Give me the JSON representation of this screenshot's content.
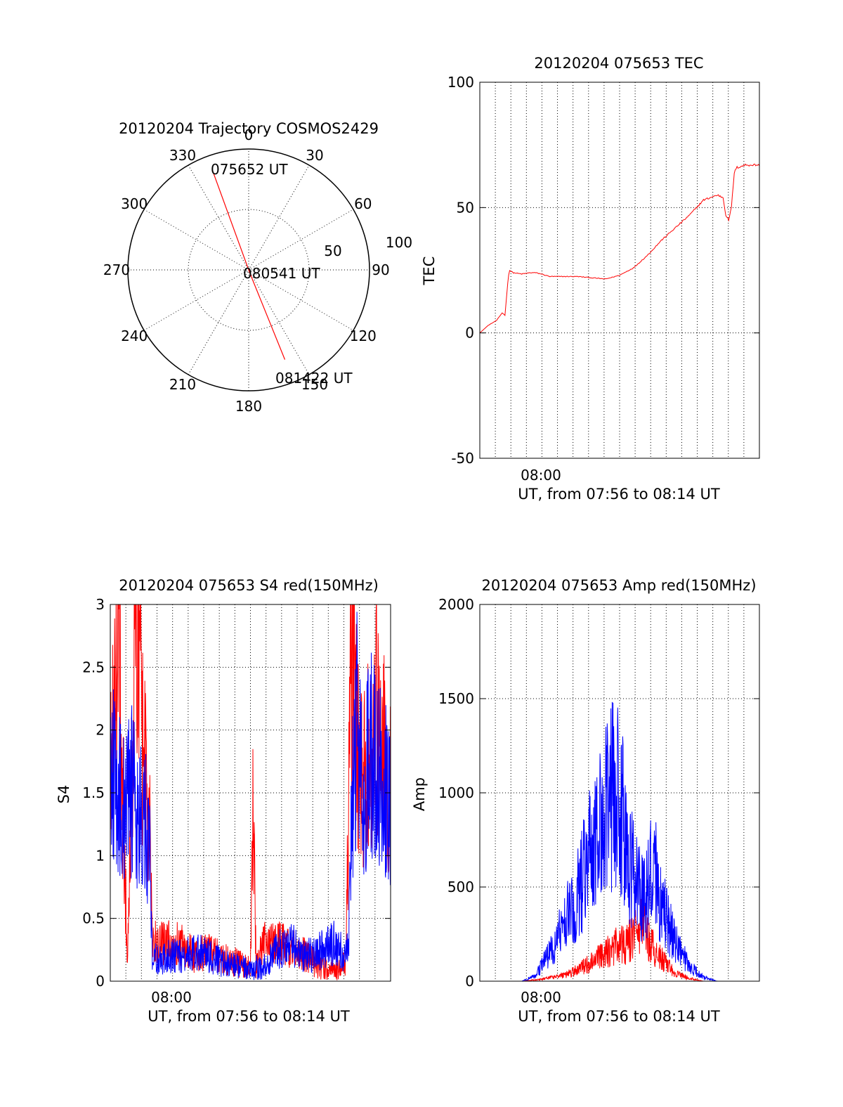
{
  "chart_data": [
    {
      "type": "polar",
      "title": "20120204 Trajectory COSMOS2429",
      "azimuth_labels": [
        "0",
        "30",
        "60",
        "90",
        "120",
        "150",
        "180",
        "210",
        "240",
        "270",
        "300",
        "330"
      ],
      "radial_labels": [
        "50",
        "100"
      ],
      "trajectory": {
        "color": "#ff0000",
        "points": [
          {
            "azimuth": 340,
            "elevation": 12,
            "time_label": "075652 UT"
          },
          {
            "azimuth": 160,
            "elevation": 88,
            "time_label": "080541 UT"
          },
          {
            "azimuth": 158,
            "elevation": 18,
            "time_label": "081422 UT"
          }
        ]
      }
    },
    {
      "type": "line",
      "title": "20120204 075653 TEC",
      "xlabel": "UT, from 07:56 to 08:14 UT",
      "ylabel": "TEC",
      "xtick_label": "08:00",
      "ylim": [
        -50,
        100
      ],
      "yticks": [
        "100",
        "50",
        "0",
        "-50"
      ],
      "grid": true,
      "series": [
        {
          "color": "#ff0000",
          "x": [
            0.0,
            0.03,
            0.06,
            0.08,
            0.09,
            0.1,
            0.105,
            0.12,
            0.15,
            0.18,
            0.2,
            0.22,
            0.25,
            0.3,
            0.35,
            0.4,
            0.45,
            0.5,
            0.55,
            0.6,
            0.65,
            0.7,
            0.75,
            0.8,
            0.85,
            0.87,
            0.88,
            0.89,
            0.9,
            0.91,
            0.92,
            0.95,
            1.0
          ],
          "values": [
            0,
            3,
            5,
            8,
            7,
            20,
            25,
            24,
            23.5,
            24,
            24,
            23.5,
            22.5,
            22.5,
            22.5,
            22,
            21.5,
            23,
            26,
            31,
            37,
            42,
            47,
            53,
            55,
            54,
            47,
            45,
            50,
            64,
            66,
            67,
            67
          ]
        }
      ]
    },
    {
      "type": "line",
      "title": "20120204 075653 S4 red(150MHz)",
      "xlabel": "UT, from 07:56 to 08:14 UT",
      "ylabel": "S4",
      "xtick_label": "08:00",
      "ylim": [
        0,
        3
      ],
      "yticks": [
        "3",
        "2.5",
        "2",
        "1.5",
        "1",
        "0.5",
        "0"
      ],
      "grid": true,
      "series": [
        {
          "color": "#ff0000",
          "x": [
            0.0,
            0.03,
            0.06,
            0.09,
            0.12,
            0.14,
            0.15,
            0.2,
            0.25,
            0.3,
            0.35,
            0.4,
            0.45,
            0.5,
            0.51,
            0.52,
            0.55,
            0.6,
            0.65,
            0.7,
            0.75,
            0.8,
            0.84,
            0.86,
            0.9,
            0.95,
            1.0
          ],
          "values": [
            1.5,
            2.8,
            0.2,
            2.9,
            1.8,
            1.2,
            0.3,
            0.3,
            0.3,
            0.2,
            0.25,
            0.18,
            0.15,
            0.1,
            1.6,
            0.12,
            0.3,
            0.3,
            0.25,
            0.2,
            0.1,
            0.08,
            0.15,
            2.5,
            1.5,
            2.2,
            1.5
          ]
        },
        {
          "color": "#0000ff",
          "x": [
            0.0,
            0.02,
            0.04,
            0.06,
            0.08,
            0.1,
            0.12,
            0.14,
            0.15,
            0.18,
            0.2,
            0.25,
            0.3,
            0.35,
            0.4,
            0.45,
            0.5,
            0.55,
            0.6,
            0.65,
            0.7,
            0.75,
            0.8,
            0.84,
            0.85,
            0.86,
            0.88,
            0.9,
            0.93,
            0.96,
            1.0
          ],
          "values": [
            1.4,
            1.8,
            1.3,
            1.6,
            1.5,
            1.3,
            1.4,
            1.0,
            0.25,
            0.15,
            0.2,
            0.2,
            0.25,
            0.2,
            0.15,
            0.12,
            0.1,
            0.12,
            0.25,
            0.3,
            0.2,
            0.25,
            0.3,
            0.2,
            0.3,
            1.4,
            2.0,
            1.5,
            1.8,
            1.6,
            1.4
          ]
        }
      ]
    },
    {
      "type": "line",
      "title": "20120204 075653 Amp red(150MHz)",
      "xlabel": "UT, from 07:56 to 08:14 UT",
      "ylabel": "Amp",
      "xtick_label": "08:00",
      "ylim": [
        0,
        2000
      ],
      "yticks": [
        "2000",
        "1500",
        "1000",
        "500",
        "0"
      ],
      "grid": true,
      "series": [
        {
          "color": "#ff0000",
          "x": [
            0.0,
            0.15,
            0.22,
            0.3,
            0.35,
            0.4,
            0.45,
            0.5,
            0.52,
            0.55,
            0.58,
            0.6,
            0.65,
            0.7,
            0.75,
            0.8,
            1.0
          ],
          "values": [
            0,
            0,
            10,
            30,
            60,
            100,
            150,
            200,
            180,
            250,
            300,
            220,
            120,
            40,
            15,
            0,
            0
          ]
        },
        {
          "color": "#0000ff",
          "x": [
            0.0,
            0.15,
            0.2,
            0.25,
            0.3,
            0.35,
            0.4,
            0.45,
            0.48,
            0.5,
            0.52,
            0.55,
            0.58,
            0.6,
            0.62,
            0.65,
            0.7,
            0.75,
            0.8,
            0.85,
            1.0
          ],
          "values": [
            0,
            0,
            30,
            150,
            300,
            450,
            700,
            900,
            1000,
            950,
            750,
            550,
            450,
            500,
            650,
            400,
            200,
            80,
            20,
            0,
            0
          ]
        }
      ]
    }
  ]
}
